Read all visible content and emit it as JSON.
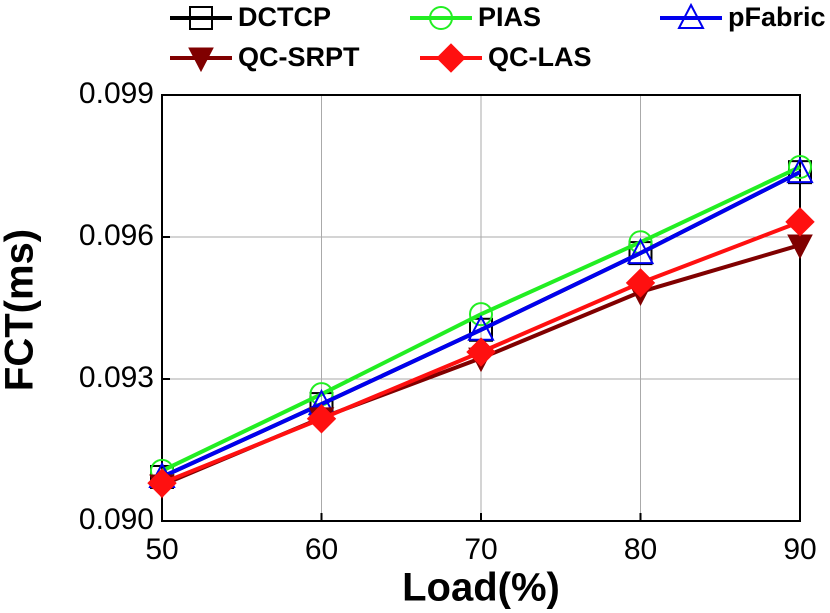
{
  "chart_data": {
    "type": "line",
    "x_label": "Load(%)",
    "y_label": "FCT(ms)",
    "x": [
      50,
      60,
      70,
      80,
      90
    ],
    "series": [
      {
        "name": "DCTCP",
        "color": "#000000",
        "marker": "square",
        "values": [
          0.09093,
          0.09247,
          0.09404,
          0.09566,
          0.09737
        ]
      },
      {
        "name": "PIAS",
        "color": "#22ee22",
        "marker": "circle",
        "values": [
          0.09106,
          0.09268,
          0.09437,
          0.09589,
          0.09748
        ]
      },
      {
        "name": "pFabric",
        "color": "#0000ee",
        "marker": "triangle",
        "values": [
          0.09093,
          0.09247,
          0.09404,
          0.09566,
          0.09737
        ]
      },
      {
        "name": "QC-SRPT",
        "color": "#800000",
        "marker": "down-triangle",
        "values": [
          0.09076,
          0.09218,
          0.09344,
          0.09484,
          0.09583
        ]
      },
      {
        "name": "QC-LAS",
        "color": "#ff1010",
        "marker": "diamond",
        "values": [
          0.0908,
          0.09216,
          0.09357,
          0.09503,
          0.09632
        ]
      }
    ],
    "xlim": [
      50,
      90
    ],
    "xticks": [
      50,
      60,
      70,
      80,
      90
    ],
    "ylim": [
      0.09,
      0.099
    ],
    "yticks": [
      {
        "value": 0.09,
        "label": "0.090"
      },
      0.093,
      0.096,
      0.099
    ],
    "grid": true,
    "legend": "top"
  }
}
